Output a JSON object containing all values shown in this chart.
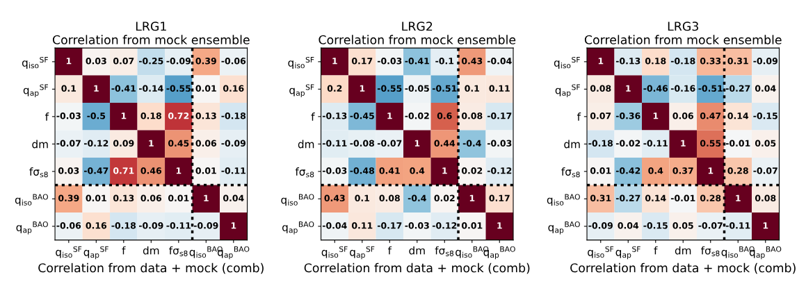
{
  "chart_data": [
    {
      "type": "heatmap",
      "title": "LRG1",
      "subtitle": "Correlation from mock ensemble",
      "xlabel": "Correlation from data + mock (comb)",
      "categories": [
        "q$_{iso}$$^{SF}$",
        "q$_{ap}$$^{SF}$",
        "f",
        "dm",
        "fσ$_{s8}$",
        "q$_{iso}$$^{BAO}$",
        "q$_{ap}$$^{BAO}$"
      ],
      "y_categories": [
        "q$_{iso}$$^{SF}$",
        "q$_{ap}$$^{SF}$",
        "f",
        "dm",
        "fσ$_{s8}$",
        "q$_{iso}$$^{BAO}$",
        "q$_{ap}$$^{BAO}$"
      ],
      "data_labels": true,
      "cells": [
        [
          1,
          0.03,
          0.07,
          -0.25,
          -0.09,
          0.39,
          -0.06
        ],
        [
          0.1,
          1,
          -0.41,
          -0.14,
          -0.55,
          0.01,
          0.16
        ],
        [
          -0.03,
          -0.5,
          1,
          0.18,
          0.72,
          0.13,
          -0.18
        ],
        [
          -0.07,
          -0.12,
          0.09,
          1,
          0.45,
          0.06,
          -0.09
        ],
        [
          0.03,
          -0.47,
          0.71,
          0.46,
          1,
          0.01,
          -0.11
        ],
        [
          0.39,
          0.01,
          0.13,
          0.06,
          0.01,
          1,
          0.04
        ],
        [
          -0.06,
          0.16,
          -0.18,
          -0.09,
          -0.11,
          -0.09,
          1
        ]
      ]
    },
    {
      "type": "heatmap",
      "title": "LRG2",
      "subtitle": "Correlation from mock ensemble",
      "xlabel": "Correlation from data + mock (comb)",
      "categories": [
        "q$_{iso}$$^{SF}$",
        "q$_{ap}$$^{SF}$",
        "f",
        "dm",
        "fσ$_{s8}$",
        "q$_{iso}$$^{BAO}$",
        "q$_{ap}$$^{BAO}$"
      ],
      "y_categories": [
        "q$_{iso}$$^{SF}$",
        "q$_{ap}$$^{SF}$",
        "f",
        "dm",
        "fσ$_{s8}$",
        "q$_{iso}$$^{BAO}$",
        "q$_{ap}$$^{BAO}$"
      ],
      "data_labels": true,
      "cells": [
        [
          1,
          0.17,
          -0.03,
          -0.41,
          -0.1,
          0.43,
          -0.04
        ],
        [
          0.2,
          1,
          -0.55,
          -0.05,
          -0.51,
          0.1,
          0.11
        ],
        [
          -0.13,
          -0.45,
          1,
          -0.02,
          0.6,
          0.08,
          -0.17
        ],
        [
          -0.11,
          -0.08,
          -0.07,
          1,
          0.44,
          -0.4,
          -0.03
        ],
        [
          -0.03,
          -0.48,
          0.41,
          0.4,
          1,
          0.02,
          -0.12
        ],
        [
          0.43,
          0.1,
          0.08,
          -0.4,
          0.02,
          1,
          0.17
        ],
        [
          -0.04,
          0.11,
          -0.17,
          -0.03,
          -0.12,
          0.01,
          1
        ]
      ]
    },
    {
      "type": "heatmap",
      "title": "LRG3",
      "subtitle": "Correlation from mock ensemble",
      "xlabel": "Correlation from data + mock (comb)",
      "categories": [
        "q$_{iso}$$^{SF}$",
        "q$_{ap}$$^{SF}$",
        "f",
        "dm",
        "fσ$_{s8}$",
        "q$_{iso}$$^{BAO}$",
        "q$_{ap}$$^{BAO}$"
      ],
      "y_categories": [
        "q$_{iso}$$^{SF}$",
        "q$_{ap}$$^{SF}$",
        "f",
        "dm",
        "fσ$_{s8}$",
        "q$_{iso}$$^{BAO}$",
        "q$_{ap}$$^{BAO}$"
      ],
      "data_labels": true,
      "cells": [
        [
          1,
          -0.13,
          0.18,
          -0.18,
          0.33,
          0.31,
          -0.09
        ],
        [
          0.08,
          1,
          -0.46,
          -0.16,
          -0.51,
          -0.27,
          0.04
        ],
        [
          0.07,
          -0.36,
          1,
          0.06,
          0.47,
          0.14,
          -0.15
        ],
        [
          -0.18,
          -0.02,
          -0.11,
          1,
          0.55,
          -0.01,
          0.05
        ],
        [
          0.01,
          -0.42,
          0.4,
          0.37,
          1,
          0.28,
          -0.07
        ],
        [
          0.31,
          -0.27,
          0.14,
          -0.01,
          0.28,
          1,
          0.08
        ],
        [
          -0.09,
          0.04,
          -0.15,
          0.05,
          -0.07,
          -0.11,
          1
        ]
      ]
    }
  ]
}
